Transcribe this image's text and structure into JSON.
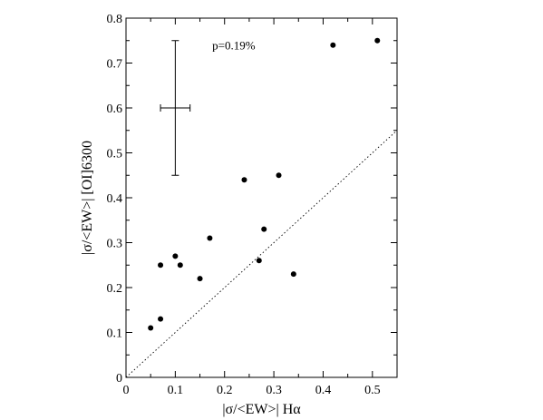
{
  "chart_data": {
    "type": "scatter",
    "xlabel": "|σ/<EW>| Hα",
    "ylabel": "|σ/<EW>| [OI]6300",
    "xlim": [
      0,
      0.55
    ],
    "ylim": [
      0,
      0.8
    ],
    "x_ticks": [
      "0",
      "0.1",
      "0.2",
      "0.3",
      "0.4",
      "0.5"
    ],
    "y_ticks": [
      "0",
      "0.1",
      "0.2",
      "0.3",
      "0.4",
      "0.5",
      "0.6",
      "0.7",
      "0.8"
    ],
    "x_tick_values": [
      0,
      0.1,
      0.2,
      0.3,
      0.4,
      0.5
    ],
    "y_tick_values": [
      0,
      0.1,
      0.2,
      0.3,
      0.4,
      0.5,
      0.6,
      0.7,
      0.8
    ],
    "grid": false,
    "annotation": "p=0.19%",
    "annotation_pos": {
      "x": 0.175,
      "y": 0.74
    },
    "points": [
      {
        "x": 0.05,
        "y": 0.11
      },
      {
        "x": 0.07,
        "y": 0.13
      },
      {
        "x": 0.07,
        "y": 0.25
      },
      {
        "x": 0.1,
        "y": 0.27
      },
      {
        "x": 0.11,
        "y": 0.25
      },
      {
        "x": 0.15,
        "y": 0.22
      },
      {
        "x": 0.17,
        "y": 0.31
      },
      {
        "x": 0.24,
        "y": 0.44
      },
      {
        "x": 0.27,
        "y": 0.26
      },
      {
        "x": 0.28,
        "y": 0.33
      },
      {
        "x": 0.31,
        "y": 0.45
      },
      {
        "x": 0.34,
        "y": 0.23
      },
      {
        "x": 0.42,
        "y": 0.74
      },
      {
        "x": 0.51,
        "y": 0.75
      }
    ],
    "typical_error_bar": {
      "x": 0.1,
      "y": 0.6,
      "x_err": 0.03,
      "y_err": 0.15
    },
    "reference_line": {
      "style": "dotted",
      "from": [
        0,
        0
      ],
      "to": [
        0.55,
        0.55
      ]
    }
  }
}
